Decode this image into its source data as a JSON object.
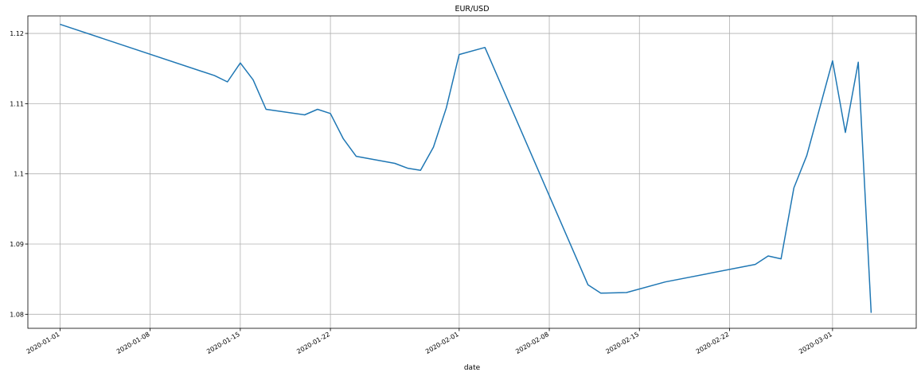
{
  "chart_data": {
    "type": "line",
    "title": "EUR/USD",
    "xlabel": "date",
    "ylabel": "",
    "grid": true,
    "xlim": [
      "2020-01-01",
      "2020-03-06"
    ],
    "ylim": [
      1.078,
      1.1225
    ],
    "x_ticks": [
      "2020-01-01",
      "2020-01-08",
      "2020-01-15",
      "2020-01-22",
      "2020-02-01",
      "2020-02-08",
      "2020-02-15",
      "2020-02-22",
      "2020-03-01"
    ],
    "y_ticks": [
      1.08,
      1.09,
      1.1,
      1.11,
      1.12
    ],
    "series": [
      {
        "color": "#1f77b4",
        "x": [
          "2020-01-01",
          "2020-01-13",
          "2020-01-14",
          "2020-01-15",
          "2020-01-16",
          "2020-01-17",
          "2020-01-20",
          "2020-01-21",
          "2020-01-22",
          "2020-01-23",
          "2020-01-24",
          "2020-01-27",
          "2020-01-28",
          "2020-01-29",
          "2020-01-30",
          "2020-01-31",
          "2020-02-01",
          "2020-02-03",
          "2020-02-11",
          "2020-02-12",
          "2020-02-14",
          "2020-02-17",
          "2020-02-24",
          "2020-02-25",
          "2020-02-26",
          "2020-02-27",
          "2020-02-28",
          "2020-03-01",
          "2020-03-02",
          "2020-03-03",
          "2020-03-04"
        ],
        "y": [
          1.1213,
          1.114,
          1.1131,
          1.1158,
          1.1134,
          1.1092,
          1.1084,
          1.1092,
          1.1086,
          1.105,
          1.1025,
          1.1015,
          1.1008,
          1.1005,
          1.1038,
          1.1094,
          1.117,
          1.118,
          1.0842,
          1.083,
          1.0831,
          1.0846,
          1.0871,
          1.0883,
          1.0879,
          1.098,
          1.1026,
          1.1161,
          1.1059,
          1.1159,
          1.0802
        ]
      }
    ]
  }
}
